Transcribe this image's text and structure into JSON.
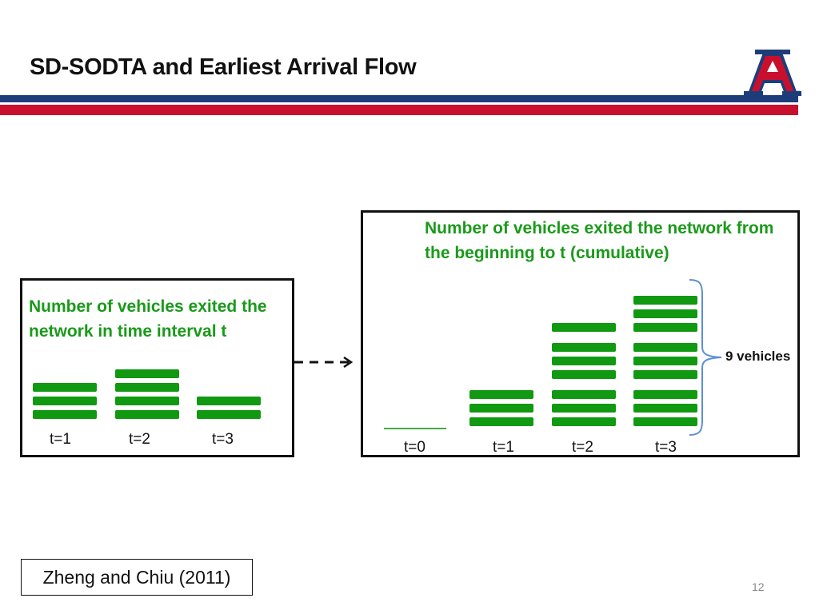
{
  "slide": {
    "title": "SD-SODTA and Earliest Arrival Flow",
    "page_number": "12",
    "citation": "Zheng and Chiu (2011)",
    "colors": {
      "blue_rule": "#1d3d7a",
      "red_rule": "#c8102e",
      "vehicle_bar": "#119911",
      "caption": "#1a9a1a"
    }
  },
  "logo": {
    "icon": "university-of-arizona-a-logo",
    "letter": "A",
    "registered": "®"
  },
  "left_panel": {
    "caption": "Number of vehicles exited the network in time interval  t",
    "intervals": [
      {
        "label": "t=1",
        "vehicles": 3
      },
      {
        "label": "t=2",
        "vehicles": 4
      },
      {
        "label": "t=3",
        "vehicles": 2
      }
    ]
  },
  "arrow": {
    "icon": "dashed-arrow-right-icon"
  },
  "right_panel": {
    "caption": "Number of vehicles exited the network from the beginning to t (cumulative)",
    "intervals": [
      {
        "label": "t=0",
        "vehicles": 0
      },
      {
        "label": "t=1",
        "vehicles": 3
      },
      {
        "label": "t=2",
        "vehicles": 7
      },
      {
        "label": "t=3",
        "vehicles": 9
      }
    ],
    "brace_label": "9 vehicles"
  }
}
